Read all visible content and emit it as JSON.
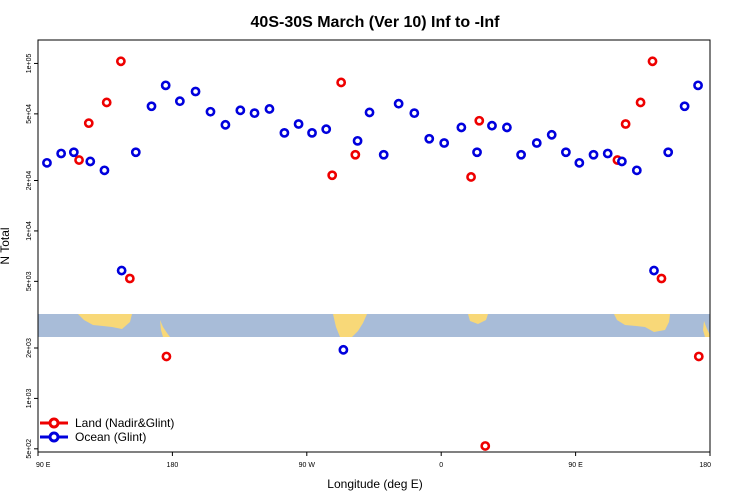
{
  "colors": {
    "land": "#ee0000",
    "ocean": "#0000dd",
    "map_band": "#a8bcd8",
    "map_land": "#f8d878"
  },
  "chart_data": {
    "type": "scatter",
    "title": "40S-30S March (Ver 10)   Inf to -Inf",
    "xlabel": "Longitude (deg E)",
    "ylabel": "N Total",
    "y_scale": "log",
    "xlim": [
      90,
      540
    ],
    "ylim_log10": [
      2.68,
      5.14
    ],
    "x_ticks": [
      {
        "value": 90,
        "label": "90 E"
      },
      {
        "value": 180,
        "label": "180"
      },
      {
        "value": 270,
        "label": "90 W"
      },
      {
        "value": 360,
        "label": "0"
      },
      {
        "value": 450,
        "label": "90 E"
      },
      {
        "value": 540,
        "label": "180"
      }
    ],
    "y_ticks": [
      {
        "value": 500,
        "label": "5e+02"
      },
      {
        "value": 1000,
        "label": "1e+03"
      },
      {
        "value": 2000,
        "label": "2e+03"
      },
      {
        "value": 5000,
        "label": "5e+03"
      },
      {
        "value": 10000,
        "label": "1e+04"
      },
      {
        "value": 20000,
        "label": "2e+04"
      },
      {
        "value": 50000,
        "label": "5e+04"
      },
      {
        "value": 100000,
        "label": "1e+05"
      }
    ],
    "legend": {
      "position": "bottom-left",
      "entries": [
        "Land (Nadir&Glint)",
        "Ocean (Glint)"
      ]
    },
    "series": [
      {
        "name": "Land (Nadir&Glint)",
        "color": "#ee0000",
        "points": [
          [
            117.5,
            26500
          ],
          [
            124,
            44000
          ],
          [
            136,
            58500
          ],
          [
            145.5,
            103000
          ],
          [
            151.5,
            5200
          ],
          [
            176,
            1780
          ],
          [
            287,
            21500
          ],
          [
            293,
            77000
          ],
          [
            302.5,
            28500
          ],
          [
            380,
            21000
          ],
          [
            385.5,
            45500
          ],
          [
            389.5,
            520
          ],
          [
            478,
            26500
          ],
          [
            483.5,
            43500
          ],
          [
            493.5,
            58500
          ],
          [
            501.5,
            103000
          ],
          [
            507.5,
            5200
          ],
          [
            532.5,
            1780
          ]
        ]
      },
      {
        "name": "Ocean (Glint)",
        "color": "#0000dd",
        "points": [
          [
            96,
            25500
          ],
          [
            105.5,
            29000
          ],
          [
            114,
            29500
          ],
          [
            125,
            26000
          ],
          [
            134.5,
            23000
          ],
          [
            146,
            5800
          ],
          [
            155.5,
            29500
          ],
          [
            166,
            55500
          ],
          [
            175.5,
            74000
          ],
          [
            185,
            59500
          ],
          [
            195.5,
            68000
          ],
          [
            205.5,
            51500
          ],
          [
            215.5,
            43000
          ],
          [
            225.5,
            52500
          ],
          [
            235,
            50500
          ],
          [
            245,
            53500
          ],
          [
            255,
            38500
          ],
          [
            264.5,
            43500
          ],
          [
            273.5,
            38500
          ],
          [
            283,
            40500
          ],
          [
            294.5,
            1950
          ],
          [
            304,
            34500
          ],
          [
            312,
            51000
          ],
          [
            321.5,
            28500
          ],
          [
            331.5,
            57500
          ],
          [
            342,
            50500
          ],
          [
            352,
            35500
          ],
          [
            362,
            33500
          ],
          [
            373.5,
            41500
          ],
          [
            384,
            29500
          ],
          [
            394,
            42500
          ],
          [
            404,
            41500
          ],
          [
            413.5,
            28500
          ],
          [
            424,
            33500
          ],
          [
            434,
            37500
          ],
          [
            443.5,
            29500
          ],
          [
            452.5,
            25500
          ],
          [
            462,
            28500
          ],
          [
            471.5,
            29000
          ],
          [
            481,
            26000
          ],
          [
            491,
            23000
          ],
          [
            502.5,
            5800
          ],
          [
            512,
            29500
          ],
          [
            523,
            55500
          ],
          [
            532,
            74000
          ]
        ]
      }
    ]
  }
}
